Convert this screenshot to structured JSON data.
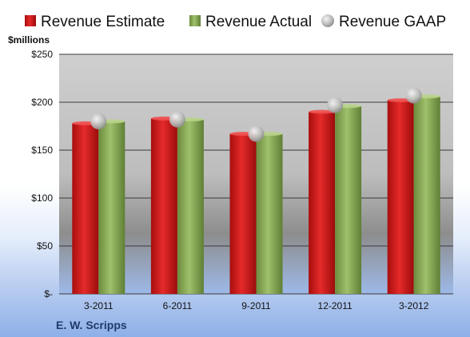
{
  "company": "E. W. Scripps",
  "chart_data": {
    "type": "bar",
    "ylabel": "$millions",
    "categories": [
      "3-2011",
      "6-2011",
      "9-2011",
      "12-2011",
      "3-2012"
    ],
    "series": [
      {
        "name": "Revenue Estimate",
        "kind": "bar",
        "color": "#d81e1e",
        "values": [
          178,
          183,
          167,
          190,
          202
        ]
      },
      {
        "name": "Revenue Actual",
        "kind": "bar",
        "color": "#8aae5a",
        "values": [
          180,
          182,
          167,
          196,
          206
        ]
      },
      {
        "name": "Revenue GAAP",
        "kind": "marker",
        "color": "#b8b8b8",
        "values": [
          180,
          182,
          167,
          197,
          207
        ]
      }
    ],
    "ylim": [
      0,
      250
    ],
    "yticks": [
      0,
      50,
      100,
      150,
      200,
      250
    ],
    "ytick_labels": [
      "$-",
      "$50",
      "$100",
      "$150",
      "$200",
      "$250"
    ],
    "grid": true,
    "legend_position": "top"
  }
}
